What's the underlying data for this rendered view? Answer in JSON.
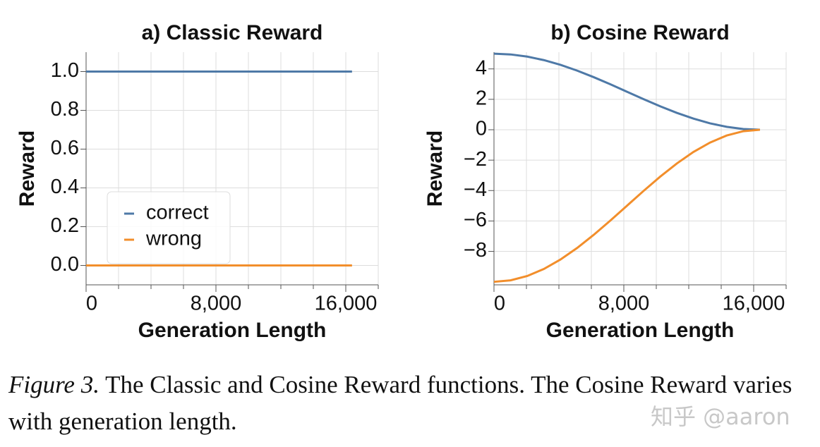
{
  "chart_data": [
    {
      "type": "line",
      "title": "a) Classic Reward",
      "xlabel": "Generation Length",
      "ylabel": "Reward",
      "x": [
        0,
        16384
      ],
      "series": [
        {
          "name": "correct",
          "color": "#4e79a7",
          "values": [
            1,
            1
          ]
        },
        {
          "name": "wrong",
          "color": "#f28e2b",
          "values": [
            0,
            0
          ]
        }
      ],
      "xlim": [
        0,
        18000
      ],
      "ylim": [
        -0.1,
        1.1
      ],
      "xticks": [
        0,
        {
          "value": 8000,
          "label": "8,000"
        },
        {
          "value": 16000,
          "label": "16,000"
        }
      ],
      "x_minor_ticks": [
        2000,
        4000,
        6000,
        10000,
        12000,
        14000,
        18000
      ],
      "yticks": [
        {
          "value": 0,
          "label": "0.0"
        },
        {
          "value": 0.2,
          "label": "0.2"
        },
        {
          "value": 0.4,
          "label": "0.4"
        },
        {
          "value": 0.6,
          "label": "0.6"
        },
        {
          "value": 0.8,
          "label": "0.8"
        },
        {
          "value": 1,
          "label": "1.0"
        }
      ],
      "grid": true,
      "legend": "left"
    },
    {
      "type": "line",
      "title": "b) Cosine Reward",
      "xlabel": "Generation Length",
      "ylabel": "Reward",
      "x": [
        0,
        1024,
        2048,
        3072,
        4096,
        5120,
        6144,
        7168,
        8192,
        9216,
        10240,
        11264,
        12288,
        13312,
        14336,
        15360,
        16384
      ],
      "series": [
        {
          "color": "#4e79a7",
          "values": [
            5,
            4.952,
            4.81,
            4.579,
            4.268,
            3.889,
            3.457,
            2.988,
            2.5,
            2.012,
            1.543,
            1.111,
            0.732,
            0.421,
            0.19,
            0.048,
            0
          ]
        },
        {
          "color": "#f28e2b",
          "values": [
            -10,
            -9.904,
            -9.619,
            -9.157,
            -8.536,
            -7.778,
            -6.913,
            -5.975,
            -5,
            -4.025,
            -3.087,
            -2.222,
            -1.464,
            -0.843,
            -0.381,
            -0.096,
            0
          ]
        }
      ],
      "xlim": [
        0,
        18000
      ],
      "ylim": [
        -10.2,
        5.1
      ],
      "xticks": [
        0,
        {
          "value": 8000,
          "label": "8,000"
        },
        {
          "value": 16000,
          "label": "16,000"
        }
      ],
      "x_minor_ticks": [
        2000,
        4000,
        6000,
        10000,
        12000,
        14000,
        18000
      ],
      "yticks": [
        {
          "value": -8,
          "label": "−8"
        },
        {
          "value": -6,
          "label": "−6"
        },
        {
          "value": -4,
          "label": "−4"
        },
        {
          "value": -2,
          "label": "−2"
        },
        0,
        2,
        4
      ],
      "grid": true
    }
  ],
  "caption": {
    "label": "Figure 3.",
    "text": "The Classic and Cosine Reward functions. The Cosine Reward varies with generation length."
  },
  "watermark": "知乎 @aaron"
}
